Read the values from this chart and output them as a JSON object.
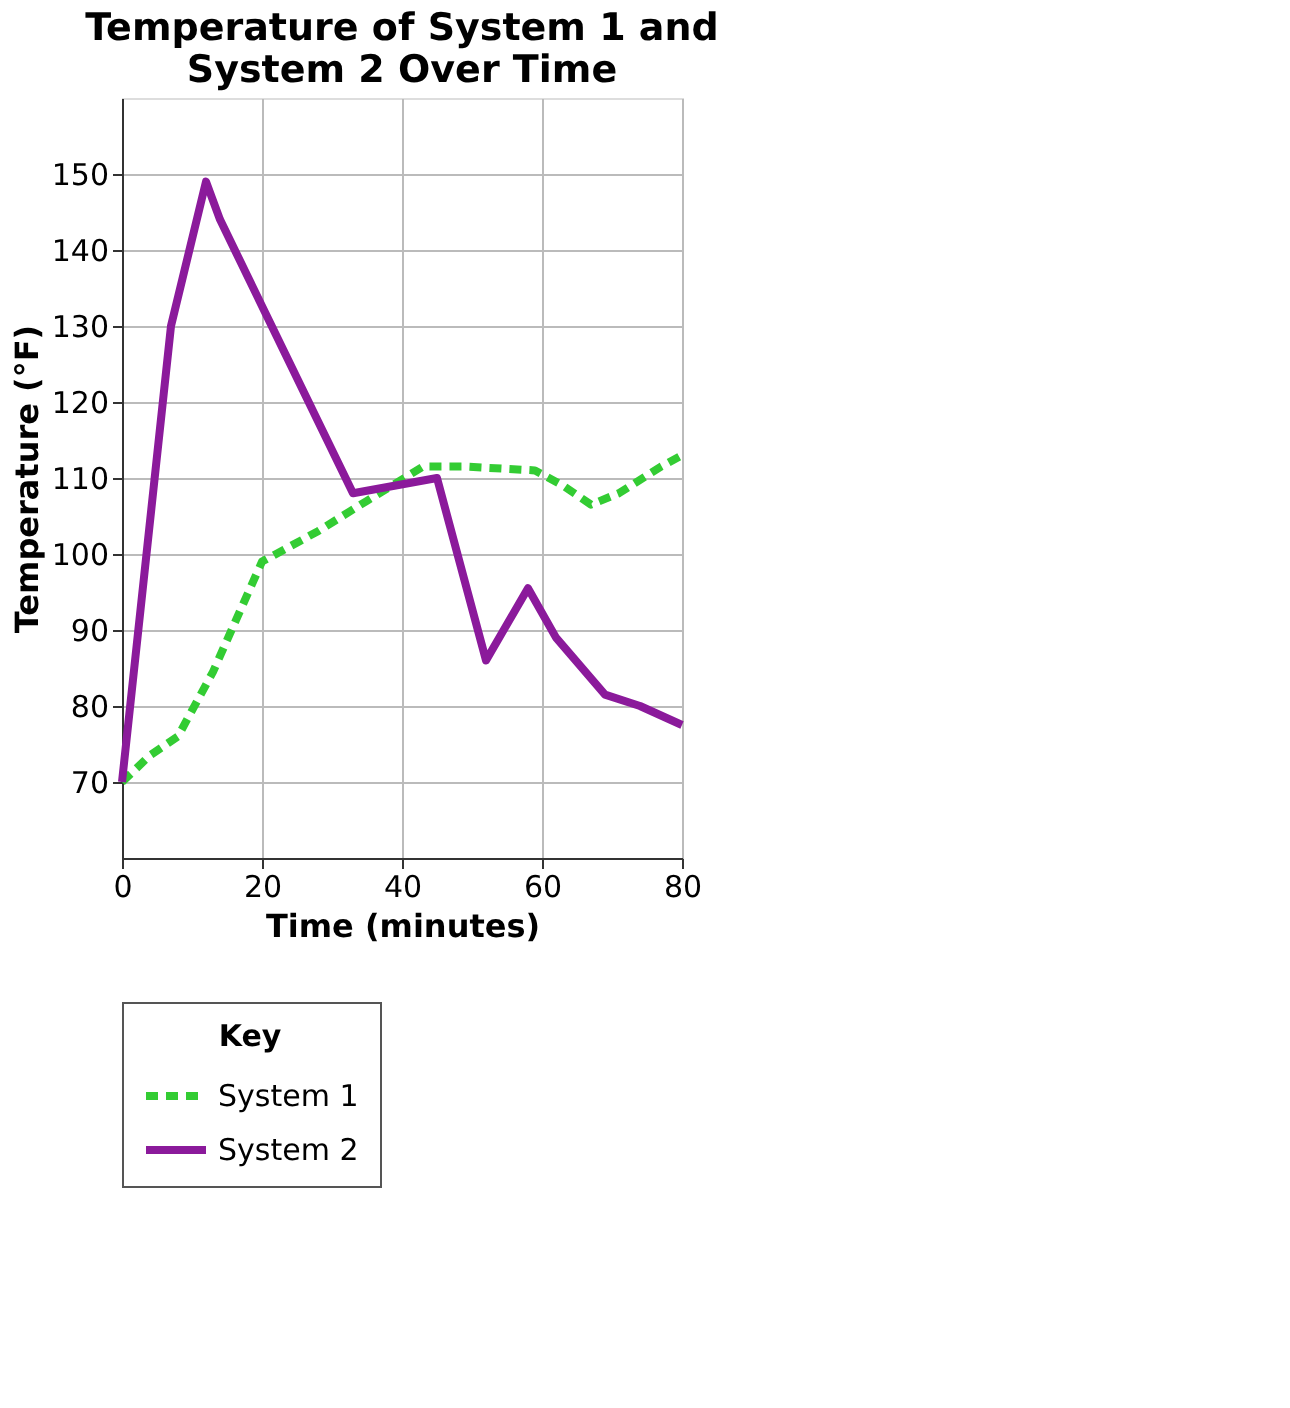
{
  "chart_data": {
    "type": "line",
    "title": "Temperature of System 1 and System 2 Over Time",
    "xlabel": "Time (minutes)",
    "ylabel": "Temperature (°F)",
    "legend_title": "Key",
    "xlim": [
      0,
      80
    ],
    "xticks": [
      0,
      20,
      40,
      60,
      80
    ],
    "ylim": [
      60,
      160
    ],
    "yticks": [
      70,
      80,
      90,
      100,
      110,
      120,
      130,
      140,
      150
    ],
    "grid": true,
    "legend": "bottom",
    "marker": "none",
    "series": [
      {
        "name": "System 1",
        "color": "#33cc33",
        "line_style": "dashed",
        "x": [
          0,
          4,
          8,
          13,
          20,
          28,
          35,
          43,
          49,
          59,
          63,
          67,
          71,
          77,
          80
        ],
        "values": [
          70,
          73.5,
          76,
          84.5,
          99,
          103,
          107,
          111.5,
          111.5,
          111,
          109,
          106.5,
          108,
          111.5,
          113
        ]
      },
      {
        "name": "System 2",
        "color": "#8b1a9b",
        "line_style": "solid",
        "x": [
          0,
          7,
          12,
          14,
          33,
          45,
          52,
          58,
          62,
          69,
          74,
          80
        ],
        "values": [
          70,
          130,
          149,
          144,
          108,
          110,
          86,
          95.5,
          89,
          81.5,
          80,
          77.5
        ]
      }
    ]
  }
}
